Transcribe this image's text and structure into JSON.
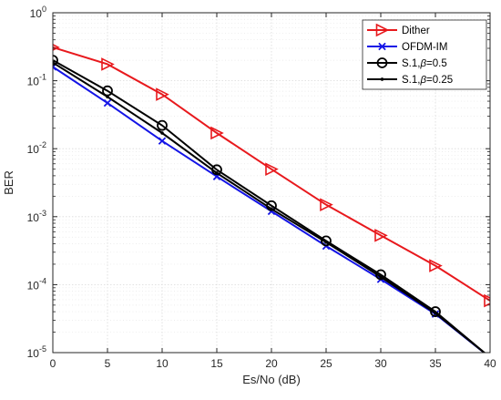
{
  "chart_data": {
    "type": "line",
    "xlabel": "Es/No (dB)",
    "ylabel": "BER",
    "xlim": [
      0,
      40
    ],
    "ylim": [
      1e-05,
      1
    ],
    "yscale": "log",
    "grid": true,
    "legend_position": "top-right",
    "x_ticks": [
      "0",
      "5",
      "10",
      "15",
      "20",
      "25",
      "30",
      "35",
      "40"
    ],
    "y_ticks": [
      {
        "base": "10",
        "exp": "0"
      },
      {
        "base": "10",
        "exp": "-1"
      },
      {
        "base": "10",
        "exp": "-2"
      },
      {
        "base": "10",
        "exp": "-3"
      },
      {
        "base": "10",
        "exp": "-4"
      },
      {
        "base": "10",
        "exp": "-5"
      }
    ],
    "series": [
      {
        "name": "Dither",
        "color": "#e8191d",
        "marker": "triangle-right",
        "x": [
          0,
          5,
          10,
          15,
          20,
          25,
          30,
          35,
          40
        ],
        "y": [
          0.31,
          0.175,
          0.063,
          0.017,
          0.005,
          0.0015,
          0.00053,
          0.00019,
          5.8e-05
        ]
      },
      {
        "name": "OFDM-IM",
        "color": "#1414e6",
        "marker": "x",
        "x": [
          0,
          5,
          10,
          15,
          20,
          25,
          30,
          35,
          40
        ],
        "y": [
          0.16,
          0.047,
          0.013,
          0.0039,
          0.0012,
          0.00037,
          0.00012,
          3.7e-05,
          8.5e-06
        ]
      },
      {
        "name": "S.1,β=0.5",
        "name_parts": {
          "prefix": "S.1,",
          "symbol": "β",
          "suffix": "=0.5"
        },
        "color": "#000000",
        "marker": "circle",
        "x": [
          0,
          5,
          10,
          15,
          20,
          25,
          30,
          35,
          40
        ],
        "y": [
          0.2,
          0.071,
          0.022,
          0.0049,
          0.00145,
          0.00044,
          0.00014,
          4e-05,
          8.5e-06
        ]
      },
      {
        "name": "S.1,β=0.25",
        "name_parts": {
          "prefix": "S.1,",
          "symbol": "β",
          "suffix": "=0.25"
        },
        "color": "#000000",
        "marker": "dot",
        "x": [
          0,
          5,
          10,
          15,
          20,
          25,
          30,
          35,
          40
        ],
        "y": [
          0.185,
          0.058,
          0.017,
          0.0044,
          0.0013,
          0.00042,
          0.00013,
          3.8e-05,
          8.5e-06
        ]
      }
    ]
  }
}
